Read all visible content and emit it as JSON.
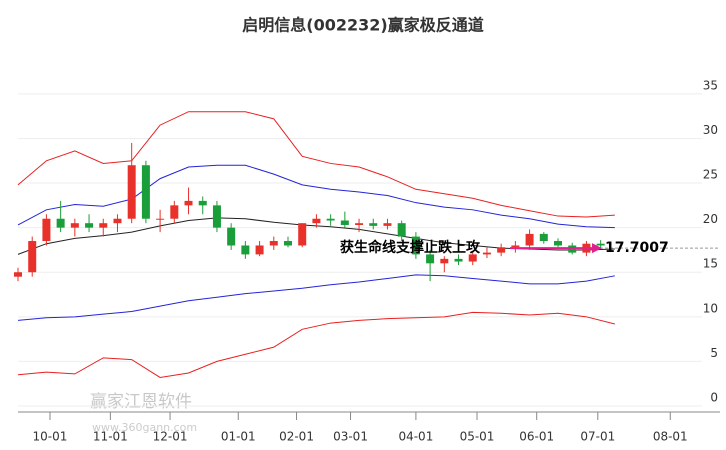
{
  "chart_data": {
    "type": "candlestick",
    "title": "启明信息(002232)赢家极反通道",
    "x": [
      0,
      1,
      2,
      3,
      4,
      5,
      6,
      7,
      8,
      9,
      10,
      11,
      12,
      13,
      14,
      15,
      16,
      17,
      18,
      19,
      20,
      21,
      22,
      23,
      24,
      25,
      26,
      27,
      28,
      29,
      30,
      31,
      32,
      33,
      34,
      35,
      36,
      37,
      38,
      39,
      40,
      41
    ],
    "open": [
      14.5,
      15,
      18.5,
      21,
      20,
      20.5,
      20,
      20.5,
      21,
      27,
      21,
      21,
      22.5,
      23,
      22.5,
      20,
      18,
      17,
      18,
      18.5,
      18,
      20.5,
      21,
      20.8,
      20.3,
      20.5,
      20.2,
      20.5,
      19,
      17,
      16,
      16.5,
      16.2,
      17,
      17.2,
      17.8,
      18,
      19.3,
      18.5,
      18,
      17.2,
      18.2
    ],
    "high": [
      15.5,
      19,
      21.5,
      23,
      21,
      21.5,
      21,
      21.5,
      29.5,
      27.5,
      22,
      23,
      24.5,
      23.5,
      23,
      20.5,
      18.5,
      18.5,
      19,
      19,
      20.5,
      21.5,
      21.5,
      21.8,
      21,
      21,
      21,
      20.8,
      19.5,
      17.5,
      16.8,
      17,
      17.3,
      17.8,
      18.2,
      18.5,
      19.8,
      19.5,
      18.8,
      18.3,
      18.5,
      18.6
    ],
    "low": [
      14,
      14.5,
      18,
      19.5,
      19,
      19.5,
      19,
      19.5,
      20.5,
      20.5,
      19.5,
      20.5,
      21.5,
      21.5,
      19.5,
      17.5,
      16.5,
      16.8,
      17.5,
      17.8,
      17.8,
      20,
      20.2,
      20,
      19.5,
      19.8,
      19.8,
      18.5,
      16.5,
      14,
      15,
      15.8,
      15.8,
      16.6,
      16.8,
      17.2,
      17.5,
      18.2,
      17.8,
      17,
      16.8,
      17.6
    ],
    "close": [
      15,
      18.5,
      21,
      20,
      20.5,
      20,
      20.5,
      21,
      27,
      21,
      21,
      22.5,
      23,
      22.5,
      20,
      18,
      17,
      18,
      18.5,
      18,
      20.5,
      21,
      20.8,
      20.3,
      20.5,
      20.2,
      20.5,
      19,
      17,
      16,
      16.5,
      16.2,
      17,
      17.2,
      17.8,
      18,
      19.3,
      18.5,
      18,
      17.2,
      18.2,
      18
    ],
    "up_color": "#e8312a",
    "down_color": "#1a9e3a",
    "line_x": [
      0,
      2,
      4,
      6,
      8,
      10,
      12,
      14,
      16,
      18,
      20,
      22,
      24,
      26,
      28,
      30,
      32,
      34,
      36,
      38,
      40,
      42
    ],
    "lines": [
      {
        "color": "#e82020",
        "values": [
          24.8,
          27.5,
          28.6,
          27.2,
          27.5,
          31.5,
          33,
          33,
          33,
          32.2,
          28,
          27.2,
          26.8,
          25.7,
          24.3,
          23.8,
          23.3,
          22.5,
          21.9,
          21.3,
          21.2,
          21.4
        ]
      },
      {
        "color": "#2424d8",
        "values": [
          20.3,
          22,
          22.6,
          22.4,
          23.2,
          25.5,
          26.8,
          27,
          27,
          26,
          24.8,
          24.3,
          24,
          23.6,
          22.8,
          22.3,
          22,
          21.4,
          21,
          20.4,
          20.1,
          20
        ]
      },
      {
        "color": "#222222",
        "values": [
          17,
          18.2,
          18.8,
          19.1,
          19.5,
          20.2,
          20.8,
          21.1,
          21,
          20.6,
          20.3,
          20.1,
          19.8,
          19.3,
          18.8,
          18.3,
          18,
          17.7,
          17.6,
          17.5,
          17.5,
          17.6
        ]
      },
      {
        "color": "#2424d8",
        "values": [
          9.6,
          9.9,
          10,
          10.3,
          10.6,
          11.2,
          11.8,
          12.2,
          12.6,
          12.9,
          13.2,
          13.6,
          13.9,
          14.3,
          14.7,
          14.6,
          14.3,
          14,
          13.7,
          13.7,
          14,
          14.6
        ]
      },
      {
        "color": "#e82020",
        "values": [
          3.5,
          3.8,
          3.6,
          5.4,
          5.2,
          3.2,
          3.7,
          5,
          5.8,
          6.6,
          8.6,
          9.3,
          9.6,
          9.8,
          9.9,
          10,
          10.5,
          10.4,
          10.2,
          10.4,
          10,
          9.2
        ]
      }
    ],
    "annotation": {
      "text": "获生命线支撑止跌上攻",
      "value": 17.7007,
      "value_label": "17.7007",
      "color": "#e0208c"
    },
    "xlim": [
      0,
      49.4
    ],
    "xticks": [
      {
        "value": 2.25,
        "label": "10-01"
      },
      {
        "value": 6.5,
        "label": "11-01"
      },
      {
        "value": 10.7,
        "label": "12-01"
      },
      {
        "value": 15.5,
        "label": "01-01"
      },
      {
        "value": 19.6,
        "label": "02-01"
      },
      {
        "value": 23.4,
        "label": "03-01"
      },
      {
        "value": 28,
        "label": "04-01"
      },
      {
        "value": 32.3,
        "label": "05-01"
      },
      {
        "value": 36.5,
        "label": "06-01"
      },
      {
        "value": 40.8,
        "label": "07-01"
      },
      {
        "value": 45.9,
        "label": "08-01"
      }
    ],
    "ylim": [
      0,
      38.8
    ],
    "yticks": [
      0,
      5,
      10,
      15,
      20,
      25,
      30,
      35
    ],
    "grid": true,
    "watermark": {
      "text": "赢家江恩软件",
      "url": "www.360gann.com"
    }
  }
}
